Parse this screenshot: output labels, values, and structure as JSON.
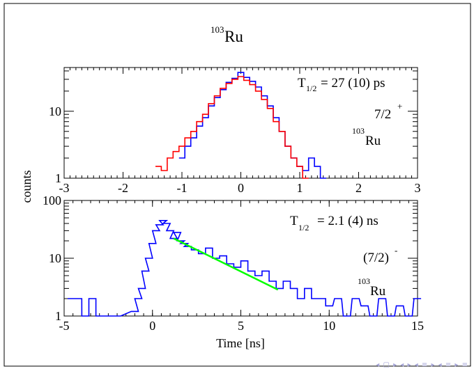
{
  "figure": {
    "title_mass": "103",
    "title_element": "Ru",
    "shared_ylabel": "counts"
  },
  "chart_data": [
    {
      "type": "line",
      "panel": "top",
      "xlim": [
        -3,
        3
      ],
      "ylim": [
        1,
        45
      ],
      "ylog": true,
      "xticks": [
        "-3",
        "-2",
        "-1",
        "0",
        "1",
        "2",
        "3"
      ],
      "yticks": [
        "1",
        "10"
      ],
      "halflife_prefix": "T",
      "halflife_sub": "1/2",
      "halflife_value": "= 27 (10) ps",
      "spin_label": "7/2",
      "spin_sup": "+",
      "nucleus_mass": "103",
      "nucleus_element": "Ru",
      "series": [
        {
          "color": "#0000ff",
          "x": [
            -1.0,
            -0.9,
            -0.8,
            -0.7,
            -0.6,
            -0.5,
            -0.4,
            -0.3,
            -0.2,
            -0.1,
            0.0,
            0.1,
            0.2,
            0.3,
            0.4,
            0.5,
            0.6,
            0.7,
            0.8,
            0.9,
            1.0,
            1.1,
            1.2,
            1.3,
            1.4
          ],
          "values": [
            2,
            3,
            4,
            6,
            8,
            12,
            16,
            21,
            27,
            31,
            38,
            32,
            28,
            23,
            17,
            12,
            8,
            5,
            3,
            2,
            1.5,
            1.3,
            2,
            1.5,
            1
          ]
        },
        {
          "color": "#ff0000",
          "x": [
            -1.4,
            -1.3,
            -1.2,
            -1.1,
            -1.0,
            -0.9,
            -0.8,
            -0.7,
            -0.6,
            -0.5,
            -0.4,
            -0.3,
            -0.2,
            -0.1,
            0.0,
            0.1,
            0.2,
            0.3,
            0.4,
            0.5,
            0.6,
            0.7,
            0.8,
            0.9,
            1.0,
            1.1
          ],
          "values": [
            1.5,
            1.3,
            2,
            2.5,
            3,
            4,
            5,
            7,
            9,
            13,
            17,
            22,
            26,
            30,
            33,
            29,
            25,
            20,
            15,
            11,
            7,
            5,
            3,
            2,
            1.5,
            1
          ]
        }
      ]
    },
    {
      "type": "line",
      "panel": "bottom",
      "xlabel": "Time [ns]",
      "xlim": [
        -5,
        15
      ],
      "ylim": [
        1,
        100
      ],
      "ylog": true,
      "xticks": [
        "-5",
        "0",
        "5",
        "10",
        "15"
      ],
      "yticks": [
        "1",
        "10",
        "100"
      ],
      "halflife_prefix": "T",
      "halflife_sub": "1/2",
      "halflife_value": "= 2.1 (4) ns",
      "spin_label": "(7/2)",
      "spin_sup": "-",
      "nucleus_mass": "103",
      "nucleus_element": "Ru",
      "series": [
        {
          "color": "#0000ff",
          "x": [
            -4.6,
            -4.2,
            -3.8,
            -3.4,
            -3.0,
            -2.0,
            -1.0,
            -0.8,
            -0.6,
            -0.4,
            -0.2,
            0.0,
            0.2,
            0.4,
            0.6,
            0.8,
            1.0,
            1.2,
            1.4,
            1.6,
            1.8,
            2.0,
            2.4,
            2.8,
            3.2,
            3.6,
            4.0,
            4.4,
            4.8,
            5.2,
            5.6,
            6.0,
            6.4,
            6.8,
            7.2,
            7.6,
            8.0,
            8.4,
            8.8,
            9.2,
            9.6,
            10.0,
            10.5,
            11.0,
            11.5,
            12.0,
            12.5,
            13.0,
            13.5,
            14.0,
            14.5,
            15.0
          ],
          "values": [
            2,
            2,
            1,
            2,
            1,
            1,
            1.2,
            2,
            3,
            6,
            10,
            18,
            30,
            38,
            45,
            40,
            30,
            22,
            28,
            20,
            18,
            16,
            14,
            12,
            15,
            10,
            11,
            8,
            7,
            9,
            6,
            5,
            6,
            4,
            3,
            4,
            3,
            2,
            3,
            2,
            2,
            1.5,
            2,
            1,
            2,
            1.5,
            1,
            2,
            1,
            1.5,
            1,
            2
          ]
        },
        {
          "color": "#00ff00",
          "x": [
            1.2,
            7.1
          ],
          "values": [
            22,
            2.85
          ]
        }
      ]
    }
  ]
}
